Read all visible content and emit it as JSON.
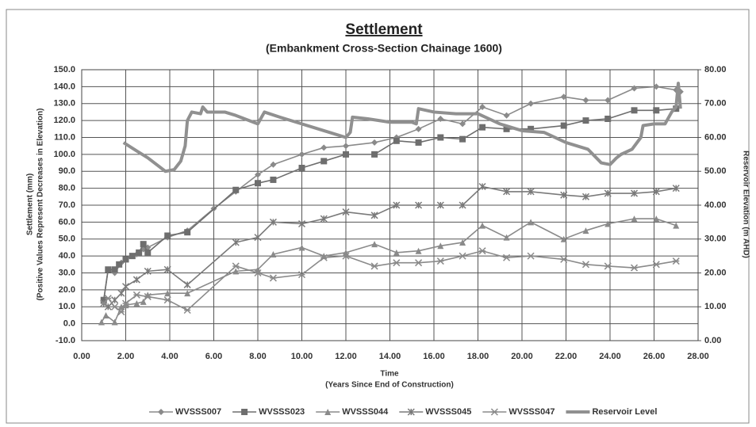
{
  "chart_data": {
    "type": "line",
    "title": "Settlement",
    "subtitle": "(Embankment Cross-Section Chainage 1600)",
    "x_label": [
      "Time",
      "(Years Since End of Construction)"
    ],
    "y_label": [
      "Settlement (mm)",
      "(Positive Values Represent Decreases in Elevation)"
    ],
    "y2_label": "Reservoir Elevation  (m AHD)",
    "grid": true,
    "legend": "bottom",
    "xlim": [
      0,
      28
    ],
    "xticks": [
      {
        "value": 0,
        "label": "0.00"
      },
      {
        "value": 2,
        "label": "2.00"
      },
      {
        "value": 4,
        "label": "4.00"
      },
      {
        "value": 6,
        "label": "6.00"
      },
      {
        "value": 8,
        "label": "8.00"
      },
      {
        "value": 10,
        "label": "10.00"
      },
      {
        "value": 12,
        "label": "12.00"
      },
      {
        "value": 14,
        "label": "14.00"
      },
      {
        "value": 16,
        "label": "16.00"
      },
      {
        "value": 18,
        "label": "18.00"
      },
      {
        "value": 20,
        "label": "20.00"
      },
      {
        "value": 22,
        "label": "22.00"
      },
      {
        "value": 24,
        "label": "24.00"
      },
      {
        "value": 26,
        "label": "26.00"
      },
      {
        "value": 28,
        "label": "28.00"
      }
    ],
    "ylim": [
      -10,
      150
    ],
    "yticks": [
      {
        "value": -10,
        "label": "-10.0"
      },
      {
        "value": 0,
        "label": "0.0"
      },
      {
        "value": 10,
        "label": "10.0"
      },
      {
        "value": 20,
        "label": "20.0"
      },
      {
        "value": 30,
        "label": "30.0"
      },
      {
        "value": 40,
        "label": "40.0"
      },
      {
        "value": 50,
        "label": "50.0"
      },
      {
        "value": 60,
        "label": "60.0"
      },
      {
        "value": 70,
        "label": "70.0"
      },
      {
        "value": 80,
        "label": "80.0"
      },
      {
        "value": 90,
        "label": "90.0"
      },
      {
        "value": 100,
        "label": "100.0"
      },
      {
        "value": 110,
        "label": "110.0"
      },
      {
        "value": 120,
        "label": "120.0"
      },
      {
        "value": 130,
        "label": "130.0"
      },
      {
        "value": 140,
        "label": "140.0"
      },
      {
        "value": 150,
        "label": "150.0"
      }
    ],
    "y2lim": [
      0,
      80
    ],
    "y2ticks": [
      {
        "value": 0,
        "label": "0.00"
      },
      {
        "value": 10,
        "label": "10.00"
      },
      {
        "value": 20,
        "label": "20.00"
      },
      {
        "value": 30,
        "label": "30.00"
      },
      {
        "value": 40,
        "label": "40.00"
      },
      {
        "value": 50,
        "label": "50.00"
      },
      {
        "value": 60,
        "label": "60.00"
      },
      {
        "value": 70,
        "label": "70.00"
      },
      {
        "value": 80,
        "label": "80.00"
      }
    ],
    "series": [
      {
        "name": "WVSSS007",
        "color": "#8a8a8a",
        "marker": "diamond",
        "x": [
          1.0,
          1.2,
          1.5,
          1.8,
          2.0,
          2.5,
          2.8,
          3.0,
          3.9,
          4.8,
          6.0,
          7.0,
          8.0,
          8.7,
          10.0,
          11.0,
          12.0,
          13.3,
          14.3,
          15.3,
          16.3,
          17.3,
          18.2,
          19.3,
          20.4,
          21.9,
          22.9,
          23.9,
          25.1,
          26.1,
          27.0,
          27.2
        ],
        "values": [
          14,
          32,
          30,
          36,
          38,
          41,
          44,
          45,
          51,
          55,
          68,
          78,
          88,
          94,
          100,
          104,
          105,
          107,
          110,
          115,
          121,
          118,
          128,
          123,
          130,
          134,
          132,
          132,
          139,
          140,
          138,
          137
        ]
      },
      {
        "name": "WVSSS023",
        "color": "#6e6e6e",
        "marker": "square",
        "x": [
          1.0,
          1.2,
          1.5,
          1.7,
          2.0,
          2.3,
          2.6,
          2.8,
          3.0,
          3.9,
          4.8,
          7.0,
          8.0,
          8.7,
          10.0,
          11.0,
          12.0,
          13.3,
          14.3,
          15.3,
          16.3,
          17.3,
          18.2,
          19.3,
          20.4,
          21.9,
          22.9,
          23.9,
          25.1,
          26.1,
          27.0
        ],
        "values": [
          14,
          32,
          32,
          35,
          38,
          40,
          42,
          47,
          42,
          52,
          54,
          79,
          83,
          85,
          92,
          96,
          100,
          100,
          108,
          107,
          110,
          109,
          116,
          115,
          115,
          117,
          120,
          121,
          126,
          126,
          127
        ]
      },
      {
        "name": "WVSSS044",
        "color": "#8a8a8a",
        "marker": "triangle",
        "x": [
          0.9,
          1.1,
          1.5,
          1.8,
          2.0,
          2.5,
          2.8,
          3.0,
          3.9,
          4.8,
          7.0,
          8.0,
          8.7,
          10.0,
          11.0,
          12.0,
          13.3,
          14.3,
          15.3,
          16.3,
          17.3,
          18.2,
          19.3,
          20.4,
          21.9,
          22.9,
          23.9,
          25.1,
          26.1,
          27.0
        ],
        "values": [
          1,
          5,
          1,
          10,
          11,
          12,
          13,
          17,
          18,
          18,
          31,
          32,
          41,
          45,
          40,
          42,
          47,
          42,
          43,
          46,
          48,
          58,
          51,
          60,
          50,
          55,
          59,
          62,
          62,
          58
        ]
      },
      {
        "name": "WVSSS045",
        "color": "#7a7a7a",
        "marker": "xbar",
        "x": [
          1.0,
          1.2,
          1.5,
          1.8,
          2.0,
          2.5,
          3.0,
          3.9,
          4.8,
          7.0,
          8.0,
          8.7,
          10.0,
          11.0,
          12.0,
          13.3,
          14.3,
          15.3,
          16.3,
          17.3,
          18.2,
          19.3,
          20.4,
          21.9,
          22.9,
          23.9,
          25.1,
          26.1,
          27.0
        ],
        "values": [
          12,
          10,
          14,
          18,
          22,
          26,
          31,
          32,
          23,
          48,
          51,
          60,
          59,
          62,
          66,
          64,
          70,
          70,
          70,
          70,
          81,
          78,
          78,
          76,
          75,
          77,
          77,
          78,
          80
        ]
      },
      {
        "name": "WVSSS047",
        "color": "#8a8a8a",
        "marker": "asterisk",
        "x": [
          1.0,
          1.2,
          1.5,
          1.8,
          2.0,
          2.5,
          3.0,
          3.9,
          4.8,
          7.0,
          8.0,
          8.7,
          10.0,
          11.0,
          12.0,
          13.3,
          14.3,
          15.3,
          16.3,
          17.3,
          18.2,
          19.3,
          20.4,
          21.9,
          22.9,
          23.9,
          25.1,
          26.1,
          27.0
        ],
        "values": [
          12,
          15,
          10,
          7,
          12,
          17,
          16,
          14,
          8,
          34,
          30,
          27,
          29,
          39,
          40,
          34,
          36,
          36,
          37,
          40,
          43,
          39,
          40,
          38,
          35,
          34,
          33,
          35,
          37
        ]
      },
      {
        "name": "Reservoir Level",
        "color": "#909090",
        "marker": "none",
        "axis": "y2",
        "x": [
          1.9,
          2.5,
          3.0,
          3.5,
          3.8,
          4.2,
          4.5,
          4.7,
          4.8,
          5.0,
          5.4,
          5.5,
          5.7,
          6.5,
          7.0,
          8.0,
          8.3,
          9.0,
          10.0,
          11.0,
          12.0,
          12.2,
          12.3,
          13.0,
          14.0,
          15.0,
          15.2,
          15.3,
          16.0,
          17.0,
          18.0,
          19.0,
          20.0,
          21.0,
          22.0,
          23.0,
          23.6,
          24.0,
          24.3,
          24.5,
          25.0,
          25.4,
          25.5,
          26.0,
          26.5,
          26.8,
          27.0,
          27.1,
          27.2
        ],
        "values": [
          58.5,
          56,
          54,
          51.5,
          50,
          50.5,
          53,
          57.5,
          65,
          67.5,
          67,
          69,
          67.5,
          67.5,
          66.5,
          64,
          67.5,
          66,
          64,
          62,
          60,
          61.5,
          66,
          65.5,
          64.5,
          64.5,
          64,
          68.5,
          67.5,
          67,
          67,
          64,
          62,
          61.5,
          58.5,
          56.5,
          52.5,
          52,
          54,
          55,
          56.5,
          60,
          63.5,
          64,
          64,
          67.5,
          69,
          76,
          68.5
        ]
      }
    ]
  }
}
